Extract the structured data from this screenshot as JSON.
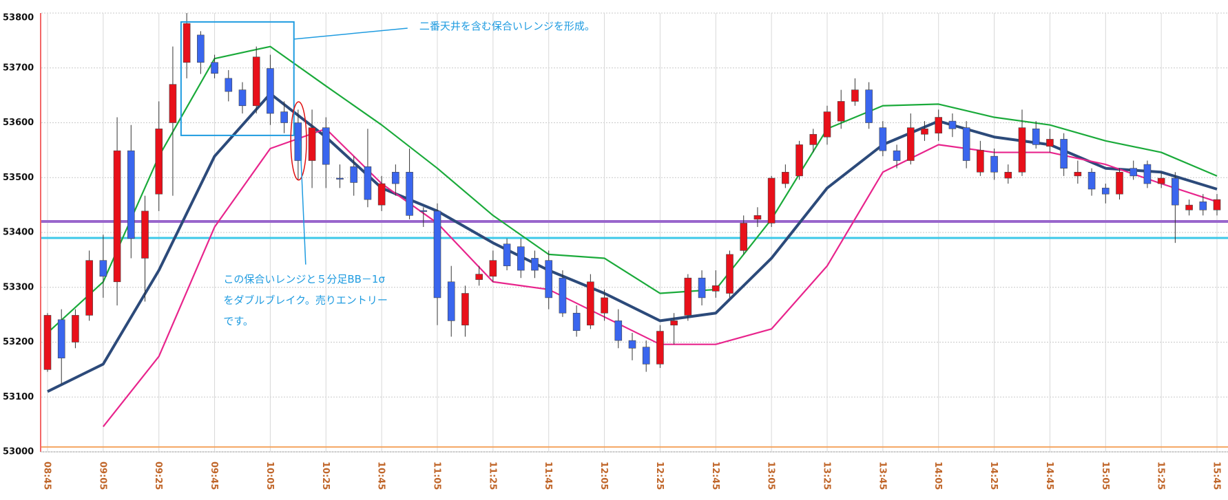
{
  "chart_data": {
    "type": "candlestick",
    "categories": [
      "08:45",
      null,
      null,
      null,
      "09:05",
      null,
      null,
      null,
      "09:25",
      null,
      null,
      null,
      "09:45",
      null,
      null,
      null,
      "10:05",
      null,
      null,
      null,
      "10:25",
      null,
      null,
      null,
      "10:45",
      null,
      null,
      null,
      "11:05",
      null,
      null,
      null,
      "11:25",
      null,
      null,
      null,
      "11:45",
      null,
      null,
      null,
      "12:05",
      null,
      null,
      null,
      "12:25",
      null,
      null,
      null,
      "12:45",
      null,
      null,
      null,
      "13:05",
      null,
      null,
      null,
      "13:25",
      null,
      null,
      null,
      "13:45",
      null,
      null,
      null,
      "14:05",
      null,
      null,
      null,
      "14:25",
      null,
      null,
      null,
      "14:45",
      null,
      null,
      null,
      "15:05",
      null,
      null,
      null,
      "15:25",
      null,
      null,
      null,
      "15:45"
    ],
    "open": [
      53150,
      53241,
      53200,
      53249,
      53349,
      53310,
      53549,
      53353,
      53470,
      53600,
      53710,
      53760,
      53710,
      53681,
      53660,
      53631,
      53699,
      53620,
      53600,
      53531,
      53591,
      53499,
      53520,
      53520,
      53450,
      53510,
      53510,
      53440,
      53439,
      53310,
      53231,
      53314,
      53320,
      53379,
      53374,
      53353,
      53349,
      53317,
      53253,
      53231,
      53253,
      53239,
      53203,
      53191,
      53160,
      53231,
      53249,
      53317,
      53293,
      53289,
      53367,
      53424,
      53417,
      53489,
      53503,
      53560,
      53574,
      53603,
      53639,
      53660,
      53591,
      53549,
      53531,
      53579,
      53581,
      53603,
      53591,
      53510,
      53539,
      53499,
      53510,
      53589,
      53557,
      53570,
      53503,
      53510,
      53481,
      53470,
      53517,
      53524,
      53489,
      53499,
      53441,
      53456,
      53441
    ],
    "high": [
      53253,
      53260,
      53260,
      53367,
      53396,
      53610,
      53596,
      53467,
      53639,
      53739,
      53800,
      53767,
      53724,
      53696,
      53674,
      53739,
      53724,
      53639,
      53624,
      53624,
      53610,
      53524,
      53539,
      53589,
      53503,
      53524,
      53553,
      53446,
      53453,
      53339,
      53303,
      53339,
      53367,
      53389,
      53389,
      53367,
      53367,
      53331,
      53267,
      53324,
      53296,
      53260,
      53217,
      53203,
      53231,
      53253,
      53324,
      53331,
      53331,
      53367,
      53431,
      53446,
      53503,
      53524,
      53567,
      53589,
      53631,
      53660,
      53681,
      53674,
      53603,
      53560,
      53617,
      53603,
      53624,
      53617,
      53603,
      53567,
      53553,
      53524,
      53624,
      53603,
      53589,
      53581,
      53531,
      53517,
      53489,
      53517,
      53531,
      53531,
      53510,
      53510,
      53460,
      53470,
      53470
    ],
    "low": [
      53146,
      53124,
      53189,
      53239,
      53281,
      53267,
      53353,
      53274,
      53439,
      53467,
      53681,
      53689,
      53681,
      53639,
      53617,
      53617,
      53596,
      53581,
      53496,
      53481,
      53481,
      53481,
      53467,
      53446,
      53439,
      53467,
      53424,
      53410,
      53231,
      53210,
      53210,
      53303,
      53310,
      53331,
      53317,
      53317,
      53260,
      53246,
      53210,
      53224,
      53239,
      53189,
      53167,
      53146,
      53153,
      53196,
      53239,
      53267,
      53281,
      53281,
      53360,
      53410,
      53410,
      53481,
      53496,
      53546,
      53560,
      53589,
      53631,
      53589,
      53539,
      53517,
      53524,
      53567,
      53567,
      53574,
      53517,
      53503,
      53496,
      53489,
      53503,
      53553,
      53546,
      53503,
      53489,
      53467,
      53453,
      53460,
      53496,
      53481,
      53481,
      53381,
      53431,
      53431,
      53431
    ],
    "close": [
      53249,
      53171,
      53249,
      53349,
      53320,
      53549,
      53389,
      53439,
      53589,
      53670,
      53781,
      53710,
      53690,
      53657,
      53631,
      53720,
      53617,
      53600,
      53531,
      53591,
      53524,
      53497,
      53491,
      53460,
      53489,
      53489,
      53431,
      53439,
      53281,
      53239,
      53289,
      53324,
      53349,
      53339,
      53331,
      53331,
      53281,
      53253,
      53221,
      53310,
      53281,
      53203,
      53189,
      53160,
      53220,
      53239,
      53317,
      53281,
      53303,
      53360,
      53417,
      53431,
      53499,
      53510,
      53560,
      53579,
      53620,
      53639,
      53660,
      53600,
      53549,
      53531,
      53591,
      53589,
      53610,
      53589,
      53531,
      53550,
      53510,
      53510,
      53591,
      53560,
      53570,
      53517,
      53510,
      53479,
      53470,
      53510,
      53503,
      53489,
      53499,
      53450,
      53450,
      53441,
      53460
    ],
    "up_color": "#e8101a",
    "down_color": "#3a66ee",
    "x": [
      "08:45",
      "09:05",
      "09:25",
      "09:45",
      "10:05",
      "10:25",
      "10:45",
      "11:05",
      "11:25",
      "11:45",
      "12:05",
      "12:25",
      "12:45",
      "13:05",
      "13:25",
      "13:45",
      "14:05",
      "14:25",
      "14:45",
      "15:05",
      "15:25",
      "15:45"
    ],
    "series": [
      {
        "color": "#2c4a7a",
        "values": [
          53110,
          53160,
          53331,
          53539,
          53653,
          53574,
          53481,
          53439,
          53381,
          53331,
          53289,
          53239,
          53253,
          53353,
          53481,
          53560,
          53603,
          53574,
          53560,
          53517,
          53510,
          53479
        ]
      },
      {
        "color": "#1aaa3a",
        "values": [
          53217,
          53310,
          53539,
          53717,
          53739,
          53667,
          53596,
          53517,
          53431,
          53360,
          53353,
          53289,
          53296,
          53424,
          53589,
          53631,
          53634,
          53610,
          53596,
          53567,
          53546,
          53503
        ]
      },
      {
        "color": "#e8248c",
        "values": [
          null,
          53046,
          53174,
          53410,
          53553,
          53589,
          53489,
          53417,
          53310,
          53296,
          53246,
          53196,
          53196,
          53224,
          53339,
          53510,
          53560,
          53546,
          53546,
          53524,
          53489,
          53456
        ]
      }
    ],
    "levels": [
      {
        "color": "#9966cc",
        "value": 53420
      },
      {
        "color": "#3cc8e8",
        "value": 53390
      },
      {
        "color": "#f4a460",
        "value": 53009
      }
    ],
    "ylim": [
      53000,
      53800
    ],
    "yticks": [
      53000,
      53100,
      53200,
      53300,
      53400,
      53500,
      53600,
      53700,
      53800
    ],
    "grid": true,
    "annotations": [
      "二番天井を含む保合いレンジを形成。",
      "この保合いレンジと５分足BB－1σ",
      "をダブルブレイク。売りエントリー",
      "です。"
    ]
  }
}
